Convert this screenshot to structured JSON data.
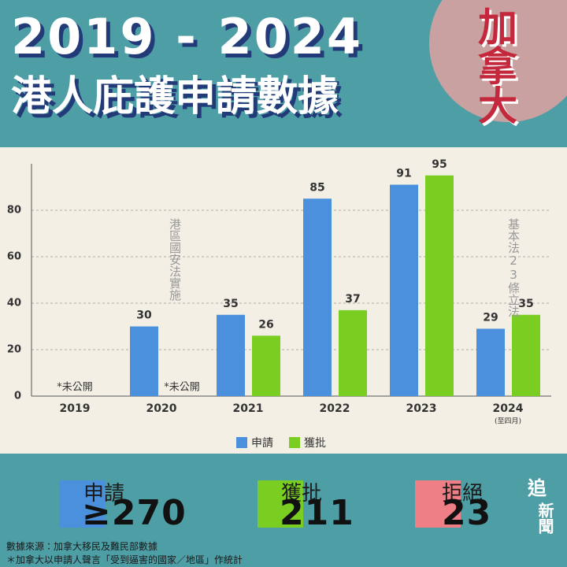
{
  "header": {
    "title_line1": "2019 - 2024",
    "title_line2": "港人庇護申請數據",
    "country": "加拿大"
  },
  "chart_data": {
    "type": "bar",
    "categories": [
      "2019",
      "2020",
      "2021",
      "2022",
      "2023",
      "2024"
    ],
    "category_notes": [
      null,
      null,
      null,
      null,
      null,
      "(至四月)"
    ],
    "series": [
      {
        "name": "申請",
        "color": "#4a90dc",
        "values": [
          null,
          30,
          35,
          85,
          91,
          29
        ]
      },
      {
        "name": "獲批",
        "color": "#7ace22",
        "values": [
          null,
          null,
          26,
          37,
          95,
          35
        ]
      }
    ],
    "ylim": [
      0,
      100
    ],
    "yticks": [
      0,
      20,
      40,
      60,
      80
    ],
    "grid": true,
    "annotations": [
      "*未公開",
      "*未公開",
      "港區國安法實施",
      "基本法23條立法"
    ]
  },
  "summary": [
    {
      "label": "申請",
      "value": "≥270",
      "color": "#4a90dc"
    },
    {
      "label": "獲批",
      "value": "211",
      "color": "#7ace22"
    },
    {
      "label": "拒絕",
      "value": "23",
      "color": "#ee7f86"
    }
  ],
  "source": [
    "數據來源：加拿大移民及難民部數據",
    "＊加拿大以申請人聲言「受到逼害的國家／地區」作統計"
  ],
  "logo": [
    "追",
    "新聞"
  ]
}
